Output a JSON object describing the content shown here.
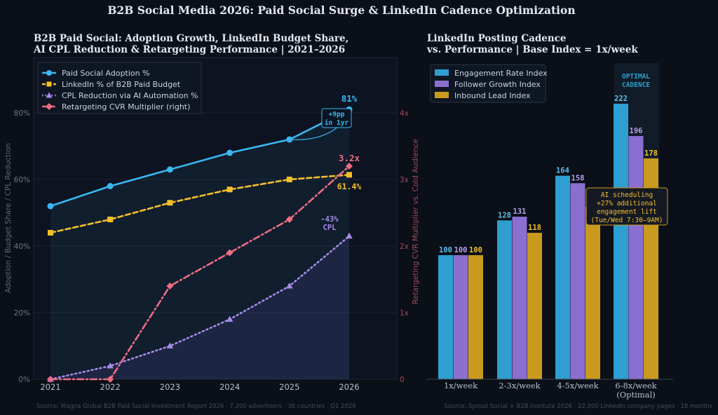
{
  "page": {
    "title": "B2B Social Media 2026: Paid Social Surge & LinkedIn Cadence Optimization",
    "footer_left": "Source: Magna Global B2B Paid Social Investment Report 2026 · 7,200 advertisers · 38 countries · Q1 2026",
    "footer_right": "Source: Sprout Social × B2B Institute 2026 · 22,000 LinkedIn company pages · 18 months"
  },
  "colors": {
    "background": "#0b0f17",
    "plot_bg": "#0d1320",
    "adoption": "#3ab7f0",
    "linkedin": "#f5bf2a",
    "cpl": "#a68ae8",
    "retargeting": "#ee6c84",
    "engagement": "#2e9fd0",
    "follower": "#8a6fd0",
    "lead": "#c99a1e"
  },
  "chart_data": [
    {
      "type": "line",
      "title_line1": "B2B Paid Social: Adoption Growth, LinkedIn Budget Share,",
      "title_line2": "AI CPL Reduction & Retargeting Performance  |  2021–2026",
      "x": [
        "2021",
        "2022",
        "2023",
        "2024",
        "2025",
        "2026"
      ],
      "ylabel": "Adoption / Budget Share / CPL Reduction",
      "y2label": "Retargeting CVR Multiplier vs. Cold Audience",
      "ylim": [
        0,
        80
      ],
      "y_ticks": [
        "0%",
        "20%",
        "40%",
        "60%",
        "80%"
      ],
      "y2lim": [
        0,
        4
      ],
      "y2_ticks": [
        "0",
        "1x",
        "2x",
        "3x",
        "4x"
      ],
      "grid": true,
      "legend_position": "top-left",
      "series": [
        {
          "name": "Paid Social Adoption %",
          "axis": "left",
          "marker": "circle",
          "style": "solid",
          "values": [
            52,
            58,
            63,
            68,
            72,
            81
          ]
        },
        {
          "name": "LinkedIn % of B2B Paid Budget",
          "axis": "left",
          "marker": "square",
          "style": "dashed",
          "values": [
            44,
            48,
            53,
            57,
            60,
            61.4
          ]
        },
        {
          "name": "CPL Reduction via AI Automation %",
          "axis": "left",
          "marker": "triangle",
          "style": "dotted",
          "values": [
            0,
            4,
            10,
            18,
            28,
            43
          ]
        },
        {
          "name": "Retargeting CVR Multiplier (right)",
          "axis": "right",
          "marker": "diamond",
          "style": "dashdot",
          "values": [
            0,
            0,
            1.4,
            1.9,
            2.4,
            3.2
          ]
        }
      ],
      "annotations": {
        "adoption_end": "81%",
        "linkedin_end": "61.4%",
        "retargeting_end": "3.2x",
        "cpl_line1": "-43%",
        "cpl_line2": "CPL",
        "jump_line1": "+9pp",
        "jump_line2": "in 1yr"
      }
    },
    {
      "type": "bar",
      "title_line1": "LinkedIn Posting Cadence",
      "title_line2": "vs. Performance  |  Base Index = 1x/week",
      "categories": [
        "1x/week",
        "2-3x/week",
        "4-5x/week",
        "6-8x/week"
      ],
      "category_sublabels": [
        "",
        "",
        "",
        "(Optimal)"
      ],
      "legend_position": "top-left",
      "series": [
        {
          "name": "Engagement Rate Index",
          "values": [
            100,
            128,
            164,
            222
          ]
        },
        {
          "name": "Follower Growth Index",
          "values": [
            100,
            131,
            158,
            196
          ]
        },
        {
          "name": "Inbound Lead Index",
          "values": [
            100,
            118,
            139,
            178
          ]
        }
      ],
      "value_labels": [
        [
          "100",
          "100",
          "100"
        ],
        [
          "128",
          "131",
          "118"
        ],
        [
          "164",
          "158",
          ""
        ],
        [
          "222",
          "196",
          "178"
        ]
      ],
      "ylim": [
        0,
        250
      ],
      "highlight_category": 3,
      "highlight_line1": "OPTIMAL",
      "highlight_line2": "CADENCE",
      "callout_line1": "AI scheduling",
      "callout_line2": "+27% additional",
      "callout_line3": "engagement lift",
      "callout_line4": "(Tue/Wed 7:30–9AM)"
    }
  ]
}
